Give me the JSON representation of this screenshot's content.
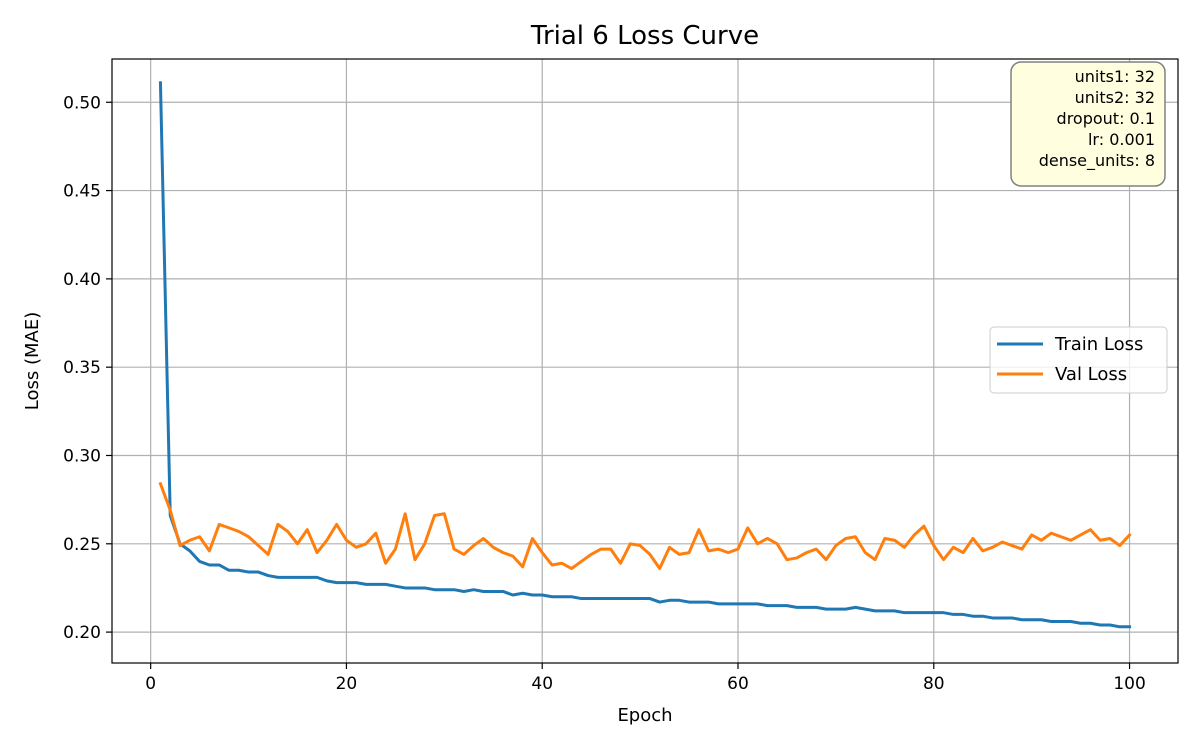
{
  "chart_data": {
    "type": "line",
    "title": "Trial 6 Loss Curve",
    "xlabel": "Epoch",
    "ylabel": "Loss (MAE)",
    "xlim": [
      -3.95,
      104.95
    ],
    "ylim": [
      0.1825,
      0.5245
    ],
    "xticks": [
      0,
      20,
      40,
      60,
      80,
      100
    ],
    "yticks": [
      0.2,
      0.25,
      0.3,
      0.35,
      0.4,
      0.45,
      0.5
    ],
    "grid": true,
    "legend_position": "center-right",
    "x": [
      1,
      2,
      3,
      4,
      5,
      6,
      7,
      8,
      9,
      10,
      11,
      12,
      13,
      14,
      15,
      16,
      17,
      18,
      19,
      20,
      21,
      22,
      23,
      24,
      25,
      26,
      27,
      28,
      29,
      30,
      31,
      32,
      33,
      34,
      35,
      36,
      37,
      38,
      39,
      40,
      41,
      42,
      43,
      44,
      45,
      46,
      47,
      48,
      49,
      50,
      51,
      52,
      53,
      54,
      55,
      56,
      57,
      58,
      59,
      60,
      61,
      62,
      63,
      64,
      65,
      66,
      67,
      68,
      69,
      70,
      71,
      72,
      73,
      74,
      75,
      76,
      77,
      78,
      79,
      80,
      81,
      82,
      83,
      84,
      85,
      86,
      87,
      88,
      89,
      90,
      91,
      92,
      93,
      94,
      95,
      96,
      97,
      98,
      99,
      100
    ],
    "series": [
      {
        "name": "Train Loss",
        "color": "#1f77b4",
        "values": [
          0.511,
          0.266,
          0.25,
          0.246,
          0.24,
          0.238,
          0.238,
          0.235,
          0.235,
          0.234,
          0.234,
          0.232,
          0.231,
          0.231,
          0.231,
          0.231,
          0.231,
          0.229,
          0.228,
          0.228,
          0.228,
          0.227,
          0.227,
          0.227,
          0.226,
          0.225,
          0.225,
          0.225,
          0.224,
          0.224,
          0.224,
          0.223,
          0.224,
          0.223,
          0.223,
          0.223,
          0.221,
          0.222,
          0.221,
          0.221,
          0.22,
          0.22,
          0.22,
          0.219,
          0.219,
          0.219,
          0.219,
          0.219,
          0.219,
          0.219,
          0.219,
          0.217,
          0.218,
          0.218,
          0.217,
          0.217,
          0.217,
          0.216,
          0.216,
          0.216,
          0.216,
          0.216,
          0.215,
          0.215,
          0.215,
          0.214,
          0.214,
          0.214,
          0.213,
          0.213,
          0.213,
          0.214,
          0.213,
          0.212,
          0.212,
          0.212,
          0.211,
          0.211,
          0.211,
          0.211,
          0.211,
          0.21,
          0.21,
          0.209,
          0.209,
          0.208,
          0.208,
          0.208,
          0.207,
          0.207,
          0.207,
          0.206,
          0.206,
          0.206,
          0.205,
          0.205,
          0.204,
          0.204,
          0.203,
          0.203
        ]
      },
      {
        "name": "Val Loss",
        "color": "#ff7f0e",
        "values": [
          0.284,
          0.269,
          0.249,
          0.252,
          0.254,
          0.246,
          0.261,
          0.259,
          0.257,
          0.254,
          0.249,
          0.244,
          0.261,
          0.257,
          0.25,
          0.258,
          0.245,
          0.252,
          0.261,
          0.252,
          0.248,
          0.25,
          0.256,
          0.239,
          0.247,
          0.267,
          0.241,
          0.25,
          0.266,
          0.267,
          0.247,
          0.244,
          0.249,
          0.253,
          0.248,
          0.245,
          0.243,
          0.237,
          0.253,
          0.245,
          0.238,
          0.239,
          0.236,
          0.24,
          0.244,
          0.247,
          0.247,
          0.239,
          0.25,
          0.249,
          0.244,
          0.236,
          0.248,
          0.244,
          0.245,
          0.258,
          0.246,
          0.247,
          0.245,
          0.247,
          0.259,
          0.25,
          0.253,
          0.25,
          0.241,
          0.242,
          0.245,
          0.247,
          0.241,
          0.249,
          0.253,
          0.254,
          0.245,
          0.241,
          0.253,
          0.252,
          0.248,
          0.255,
          0.26,
          0.249,
          0.241,
          0.248,
          0.245,
          0.253,
          0.246,
          0.248,
          0.251,
          0.249,
          0.247,
          0.255,
          0.252,
          0.256,
          0.254,
          0.252,
          0.255,
          0.258,
          0.252,
          0.253,
          0.249,
          0.255
        ]
      }
    ]
  },
  "params": {
    "lines": [
      "units1: 32",
      "units2: 32",
      "dropout: 0.1",
      "lr: 0.001",
      "dense_units: 8"
    ],
    "box_fill": "#ffffe0",
    "box_edge": "#808080"
  }
}
